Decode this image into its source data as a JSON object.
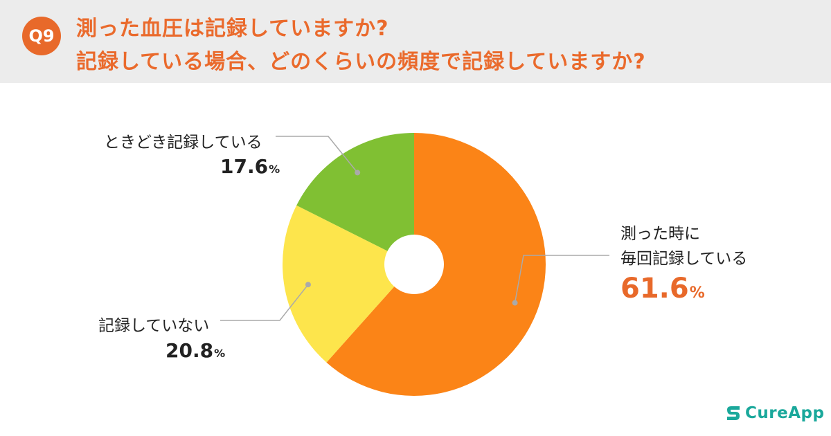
{
  "header": {
    "badge": "Q9",
    "line1": "測った血圧は記録していますか?",
    "line2": "記録している場合、どのくらいの頻度で記録していますか?"
  },
  "chart_data": {
    "type": "pie",
    "donut": true,
    "slices": [
      {
        "label_line1": "測った時に",
        "label_line2": "毎回記録している",
        "value": 61.6,
        "display": "61.6",
        "color": "#fb8417"
      },
      {
        "label_line1": "記録していない",
        "label_line2": "",
        "value": 20.8,
        "display": "20.8",
        "color": "#fde54c"
      },
      {
        "label_line1": "ときどき記録している",
        "label_line2": "",
        "value": 17.6,
        "display": "17.6",
        "color": "#80c033"
      }
    ],
    "unit": "%"
  },
  "logo": {
    "text": "CureApp",
    "color": "#1aa89b",
    "icon": "cureapp-logo-icon"
  }
}
